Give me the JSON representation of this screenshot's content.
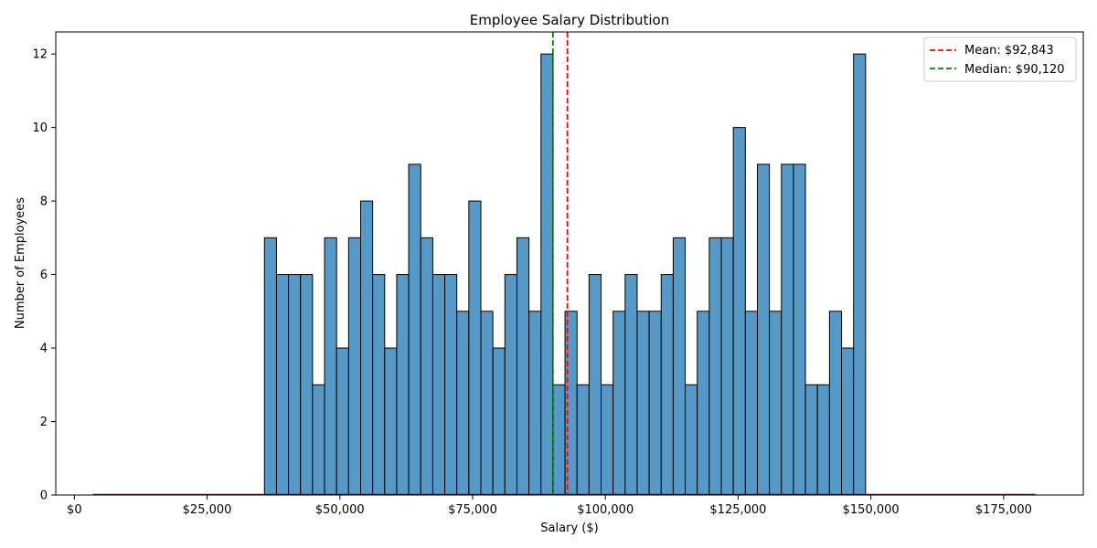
{
  "chart_data": {
    "type": "bar",
    "title": "Employee Salary Distribution",
    "xlabel": "Salary ($)",
    "ylabel": "Number of Employees",
    "xlim": [
      -3500,
      190000
    ],
    "ylim": [
      0,
      12.6
    ],
    "x_ticks": [
      0,
      25000,
      50000,
      75000,
      100000,
      125000,
      150000,
      175000
    ],
    "x_tick_labels": [
      "$0",
      "$25,000",
      "$50,000",
      "$75,000",
      "$100,000",
      "$125,000",
      "$150,000",
      "$175,000"
    ],
    "y_ticks": [
      0,
      2,
      4,
      6,
      8,
      10,
      12
    ],
    "y_tick_labels": [
      "0",
      "2",
      "4",
      "6",
      "8",
      "10",
      "12"
    ],
    "bin_start": 35800,
    "bin_width": 2264,
    "counts": [
      7,
      6,
      6,
      6,
      3,
      7,
      4,
      7,
      8,
      6,
      4,
      6,
      9,
      7,
      6,
      6,
      5,
      8,
      5,
      4,
      6,
      7,
      5,
      12,
      3,
      5,
      3,
      6,
      3,
      5,
      6,
      5,
      5,
      6,
      7,
      3,
      5,
      7,
      7,
      10,
      5,
      9,
      5,
      9,
      9,
      3,
      3,
      5,
      4,
      12
    ],
    "bar_color": "#5799c6",
    "bar_edge_color": "#000000",
    "baseline_range": [
      3500,
      181000
    ],
    "baseline_color": "#8b0000",
    "reference_lines": [
      {
        "label": "Mean: $92,843",
        "value": 92843,
        "color": "#ff0000",
        "style": "dashed"
      },
      {
        "label": "Median: $90,120",
        "value": 90120,
        "color": "#008000",
        "style": "dashed"
      }
    ],
    "legend_position": "top-right",
    "grid": false
  }
}
